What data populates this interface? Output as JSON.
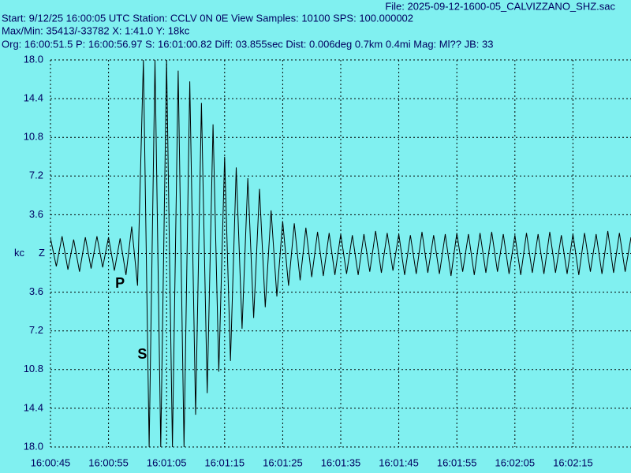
{
  "header": {
    "file": "File: 2025-09-12-1600-05_CALVIZZANO_SHZ.sac",
    "start": "Start: 9/12/25 16:00:05 UTC Station: CCLV 0N 0E View Samples: 10100  SPS: 100.000002",
    "maxmin": "Max/Min: 35413/-33782 X: 1:41.0 Y: 18kc",
    "origin": "Org: 16:00:51.5 P: 16:00:56.97 S: 16:01:00.82 Diff: 03.855sec Dist: 0.006deg 0.7km 0.4mi  Mag: Ml?? JB: 33"
  },
  "chart_data": {
    "type": "line",
    "y_label": "kc",
    "component": "Z",
    "color": "#000000",
    "grid": true,
    "xlim": [
      0,
      100
    ],
    "xticks": [
      {
        "value": 0,
        "label": "16:00:45"
      },
      {
        "value": 10,
        "label": "16:00:55"
      },
      {
        "value": 20,
        "label": "16:01:05"
      },
      {
        "value": 30,
        "label": "16:01:15"
      },
      {
        "value": 40,
        "label": "16:01:25"
      },
      {
        "value": 50,
        "label": "16:01:35"
      },
      {
        "value": 60,
        "label": "16:01:45"
      },
      {
        "value": 70,
        "label": "16:01:55"
      },
      {
        "value": 80,
        "label": "16:02:05"
      },
      {
        "value": 90,
        "label": "16:02:15"
      }
    ],
    "ylim": [
      -18,
      18
    ],
    "yticks": [
      {
        "value": 18,
        "label": "18.0"
      },
      {
        "value": 14.4,
        "label": "14.4"
      },
      {
        "value": 10.8,
        "label": "10.8"
      },
      {
        "value": 7.2,
        "label": "7.2"
      },
      {
        "value": 3.6,
        "label": "3.6"
      },
      {
        "value": 0,
        "label": ""
      },
      {
        "value": -3.6,
        "label": "3.6"
      },
      {
        "value": -7.2,
        "label": "7.2"
      },
      {
        "value": -10.8,
        "label": "10.8"
      },
      {
        "value": -14.4,
        "label": "14.4"
      },
      {
        "value": -18,
        "label": "18.0"
      }
    ],
    "picks": [
      {
        "label": "P",
        "x": 11.97
      },
      {
        "label": "S",
        "x": 15.82
      }
    ],
    "x": [
      0,
      1,
      2,
      3,
      4,
      5,
      6,
      7,
      8,
      9,
      10,
      11,
      12,
      13,
      14,
      15,
      16,
      17,
      18,
      19,
      20,
      21,
      22,
      23,
      24,
      25,
      26,
      27,
      28,
      29,
      30,
      31,
      32,
      33,
      34,
      35,
      36,
      37,
      38,
      39,
      40,
      41,
      42,
      43,
      44,
      45,
      46,
      47,
      48,
      49,
      50,
      51,
      52,
      53,
      54,
      55,
      56,
      57,
      58,
      59,
      60,
      61,
      62,
      63,
      64,
      65,
      66,
      67,
      68,
      69,
      70,
      71,
      72,
      73,
      74,
      75,
      76,
      77,
      78,
      79,
      80,
      81,
      82,
      83,
      84,
      85,
      86,
      87,
      88,
      89,
      90,
      91,
      92,
      93,
      94,
      95,
      96,
      97,
      98,
      99,
      100
    ],
    "values": [
      1.4,
      -1.2,
      1.6,
      -1.5,
      1.3,
      -1.7,
      1.5,
      -1.4,
      1.6,
      -1.3,
      1.5,
      -1.6,
      1.4,
      -2.0,
      2.5,
      -3.0,
      18,
      -18,
      18,
      -18,
      18,
      -18,
      17,
      -18,
      16,
      -15,
      14,
      -13,
      12,
      -11,
      9,
      -10,
      8,
      -7,
      7,
      -6,
      6,
      -5,
      4,
      -4,
      3,
      -3,
      2.8,
      -2.5,
      2.4,
      -2.2,
      2,
      -2.1,
      1.9,
      -2,
      1.8,
      -1.9,
      1.7,
      -2.0,
      1.8,
      -1.7,
      2.1,
      -1.8,
      1.9,
      -1.6,
      1.8,
      -2.0,
      1.7,
      -1.9,
      2.0,
      -1.8,
      1.7,
      -1.9,
      1.8,
      -2.1,
      1.9,
      -1.7,
      1.8,
      -2.0,
      1.9,
      -1.8,
      2.0,
      -1.7,
      1.8,
      -1.9,
      1.7,
      -2.0,
      1.9,
      -1.8,
      1.8,
      -1.9,
      2.0,
      -1.8,
      1.7,
      -1.9,
      1.8,
      -2.0,
      1.9,
      -1.7,
      1.8,
      -1.9,
      2.1,
      -1.8,
      1.9,
      -1.7,
      1.5
    ]
  }
}
